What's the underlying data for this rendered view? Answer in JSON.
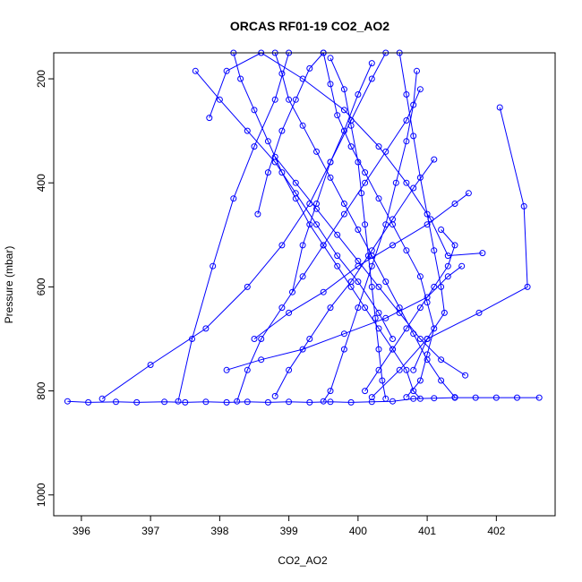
{
  "chart_data": {
    "type": "line",
    "title": "ORCAS RF01-19 CO2_AO2",
    "xlabel": "CO2_AO2",
    "ylabel": "Pressure (mbar)",
    "xlim": [
      395.6,
      402.85
    ],
    "ylim": [
      1040,
      150
    ],
    "y_reversed": true,
    "x_ticks": [
      396,
      397,
      398,
      399,
      400,
      401,
      402
    ],
    "y_ticks": [
      200,
      400,
      600,
      800,
      1000
    ],
    "grid": false,
    "legend": "none",
    "color": "#0000ff",
    "marker": "open-circle",
    "series": [
      {
        "values": [
          [
            395.8,
            820
          ],
          [
            396.1,
            822
          ],
          [
            396.5,
            821
          ],
          [
            396.8,
            822
          ],
          [
            397.2,
            821
          ],
          [
            397.5,
            822
          ],
          [
            397.8,
            821
          ],
          [
            398.1,
            822
          ],
          [
            398.4,
            821
          ],
          [
            398.7,
            822
          ],
          [
            399.0,
            821
          ],
          [
            399.3,
            822
          ],
          [
            399.6,
            821
          ],
          [
            399.9,
            822
          ],
          [
            400.2,
            821
          ],
          [
            400.5,
            820
          ],
          [
            400.8,
            815
          ],
          [
            401.1,
            814
          ],
          [
            401.4,
            813
          ],
          [
            401.7,
            813
          ],
          [
            402.0,
            813
          ],
          [
            402.3,
            813
          ],
          [
            402.62,
            813
          ]
        ]
      },
      {
        "values": [
          [
            398.2,
            150
          ],
          [
            398.3,
            200
          ],
          [
            398.5,
            260
          ],
          [
            398.7,
            320
          ],
          [
            398.9,
            380
          ],
          [
            399.1,
            430
          ],
          [
            399.3,
            480
          ],
          [
            399.5,
            520
          ],
          [
            399.7,
            560
          ],
          [
            399.9,
            600
          ],
          [
            400.1,
            640
          ],
          [
            400.3,
            680
          ],
          [
            400.5,
            720
          ],
          [
            400.7,
            760
          ],
          [
            400.8,
            800
          ],
          [
            400.9,
            815
          ]
        ]
      },
      {
        "values": [
          [
            398.8,
            150
          ],
          [
            398.9,
            190
          ],
          [
            399.0,
            240
          ],
          [
            399.2,
            290
          ],
          [
            399.4,
            340
          ],
          [
            399.6,
            390
          ],
          [
            399.8,
            440
          ],
          [
            400.0,
            490
          ],
          [
            400.2,
            540
          ],
          [
            400.4,
            590
          ],
          [
            400.6,
            640
          ],
          [
            400.8,
            690
          ],
          [
            401.0,
            740
          ],
          [
            401.2,
            780
          ],
          [
            401.4,
            812
          ]
        ]
      },
      {
        "values": [
          [
            399.5,
            150
          ],
          [
            399.6,
            210
          ],
          [
            399.7,
            270
          ],
          [
            399.9,
            330
          ],
          [
            400.1,
            380
          ],
          [
            400.3,
            430
          ],
          [
            400.5,
            480
          ],
          [
            400.7,
            530
          ],
          [
            400.9,
            580
          ],
          [
            401.0,
            630
          ],
          [
            401.1,
            680
          ],
          [
            401.0,
            730
          ],
          [
            400.9,
            780
          ],
          [
            400.7,
            812
          ]
        ]
      },
      {
        "values": [
          [
            402.05,
            255
          ],
          [
            402.4,
            445
          ],
          [
            402.45,
            600
          ],
          [
            401.75,
            650
          ],
          [
            401.0,
            700
          ],
          [
            400.6,
            760
          ],
          [
            400.2,
            812
          ]
        ]
      },
      {
        "values": [
          [
            396.3,
            815
          ],
          [
            397.0,
            750
          ],
          [
            397.8,
            680
          ],
          [
            398.4,
            600
          ],
          [
            398.9,
            520
          ],
          [
            399.3,
            440
          ],
          [
            399.6,
            360
          ],
          [
            399.9,
            280
          ],
          [
            400.2,
            200
          ],
          [
            400.4,
            150
          ]
        ]
      },
      {
        "values": [
          [
            397.4,
            820
          ],
          [
            397.6,
            700
          ],
          [
            397.9,
            560
          ],
          [
            398.2,
            430
          ],
          [
            398.5,
            330
          ],
          [
            398.8,
            240
          ],
          [
            399.0,
            150
          ]
        ]
      },
      {
        "values": [
          [
            397.85,
            275
          ],
          [
            398.1,
            185
          ],
          [
            398.6,
            150
          ],
          [
            399.2,
            200
          ],
          [
            399.8,
            260
          ],
          [
            400.3,
            330
          ],
          [
            400.7,
            400
          ],
          [
            401.05,
            470
          ],
          [
            401.3,
            540
          ],
          [
            401.8,
            535
          ]
        ]
      },
      {
        "values": [
          [
            398.5,
            700
          ],
          [
            399.0,
            650
          ],
          [
            399.5,
            610
          ],
          [
            400.0,
            560
          ],
          [
            400.5,
            520
          ],
          [
            401.0,
            480
          ],
          [
            401.4,
            440
          ],
          [
            401.6,
            420
          ]
        ]
      },
      {
        "values": [
          [
            398.1,
            760
          ],
          [
            398.6,
            740
          ],
          [
            399.2,
            720
          ],
          [
            399.8,
            690
          ],
          [
            400.4,
            660
          ],
          [
            401.0,
            620
          ],
          [
            401.3,
            580
          ],
          [
            401.5,
            560
          ]
        ]
      },
      {
        "values": [
          [
            399.05,
            610
          ],
          [
            399.2,
            520
          ],
          [
            399.4,
            440
          ],
          [
            399.6,
            360
          ],
          [
            399.8,
            300
          ],
          [
            400.0,
            230
          ],
          [
            400.2,
            170
          ]
        ]
      },
      {
        "values": [
          [
            398.55,
            460
          ],
          [
            398.7,
            380
          ],
          [
            398.9,
            300
          ],
          [
            399.1,
            240
          ],
          [
            399.3,
            180
          ],
          [
            399.5,
            150
          ]
        ]
      },
      {
        "values": [
          [
            400.6,
            150
          ],
          [
            400.7,
            230
          ],
          [
            400.8,
            310
          ],
          [
            400.9,
            390
          ],
          [
            401.0,
            460
          ],
          [
            401.1,
            530
          ],
          [
            401.2,
            600
          ],
          [
            401.25,
            650
          ],
          [
            401.0,
            700
          ],
          [
            400.8,
            760
          ]
        ]
      },
      {
        "values": [
          [
            397.65,
            185
          ],
          [
            398.0,
            240
          ],
          [
            398.4,
            300
          ],
          [
            398.8,
            360
          ],
          [
            399.1,
            420
          ],
          [
            399.4,
            480
          ],
          [
            399.7,
            540
          ],
          [
            400.0,
            590
          ],
          [
            400.3,
            650
          ],
          [
            400.5,
            700
          ]
        ]
      },
      {
        "values": [
          [
            401.1,
            355
          ],
          [
            400.8,
            410
          ],
          [
            400.5,
            470
          ],
          [
            400.2,
            530
          ],
          [
            399.9,
            590
          ],
          [
            399.6,
            640
          ],
          [
            399.3,
            700
          ],
          [
            399.0,
            760
          ],
          [
            398.8,
            810
          ]
        ]
      },
      {
        "values": [
          [
            401.55,
            770
          ],
          [
            401.2,
            740
          ],
          [
            400.9,
            700
          ],
          [
            400.6,
            650
          ],
          [
            400.3,
            600
          ],
          [
            400.0,
            550
          ],
          [
            399.7,
            500
          ],
          [
            399.4,
            450
          ],
          [
            399.1,
            400
          ],
          [
            398.8,
            350
          ]
        ]
      },
      {
        "values": [
          [
            400.85,
            185
          ],
          [
            400.8,
            250
          ],
          [
            400.7,
            320
          ],
          [
            400.55,
            400
          ],
          [
            400.4,
            480
          ],
          [
            400.2,
            560
          ],
          [
            400.0,
            640
          ],
          [
            399.8,
            720
          ],
          [
            399.6,
            800
          ],
          [
            399.5,
            820
          ]
        ]
      },
      {
        "values": [
          [
            398.25,
            820
          ],
          [
            398.4,
            760
          ],
          [
            398.6,
            700
          ],
          [
            398.9,
            640
          ],
          [
            399.2,
            580
          ],
          [
            399.5,
            520
          ],
          [
            399.8,
            460
          ],
          [
            400.1,
            400
          ],
          [
            400.4,
            340
          ],
          [
            400.7,
            280
          ],
          [
            400.9,
            220
          ]
        ]
      },
      {
        "values": [
          [
            401.2,
            490
          ],
          [
            401.4,
            520
          ],
          [
            401.3,
            560
          ],
          [
            401.1,
            600
          ],
          [
            400.9,
            640
          ],
          [
            400.7,
            680
          ],
          [
            400.5,
            720
          ],
          [
            400.3,
            760
          ],
          [
            400.1,
            800
          ]
        ]
      },
      {
        "values": [
          [
            399.6,
            160
          ],
          [
            399.8,
            220
          ],
          [
            399.9,
            290
          ],
          [
            400.0,
            360
          ],
          [
            400.05,
            420
          ],
          [
            400.1,
            480
          ],
          [
            400.15,
            540
          ],
          [
            400.2,
            600
          ],
          [
            400.25,
            660
          ],
          [
            400.3,
            720
          ],
          [
            400.35,
            780
          ],
          [
            400.4,
            815
          ]
        ]
      }
    ]
  }
}
